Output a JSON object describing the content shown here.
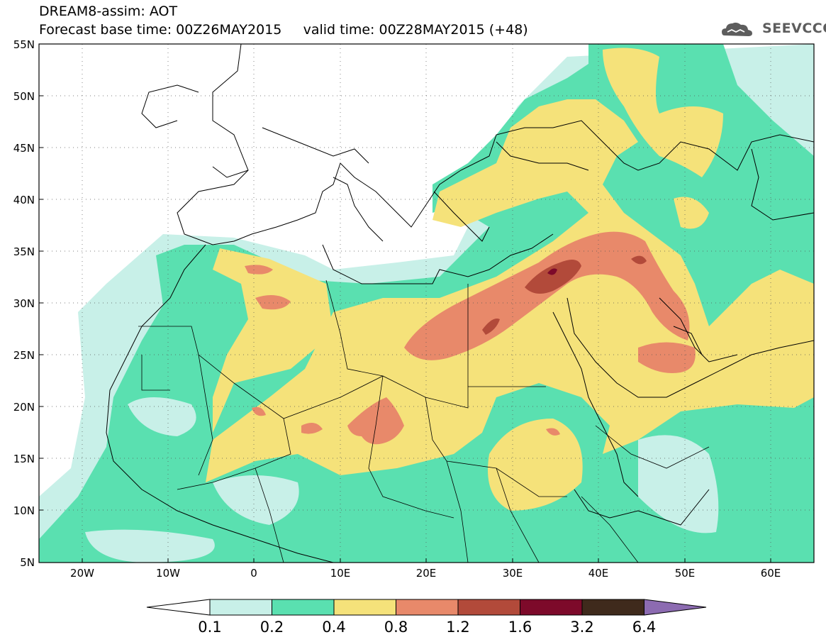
{
  "header": {
    "title_line1": "DREAM8-assim: AOT",
    "title_line2": "Forecast base time: 00Z26MAY2015     valid time: 00Z28MAY2015 (+48)",
    "logo_text": "SEEVCCC",
    "logo_icon": "cloud-logo-icon"
  },
  "map": {
    "lon_range": [
      -25,
      65
    ],
    "lat_range": [
      5,
      55
    ],
    "lat_labels": [
      "55N",
      "50N",
      "45N",
      "40N",
      "35N",
      "30N",
      "25N",
      "20N",
      "15N",
      "10N",
      "5N"
    ],
    "lon_labels": [
      "20W",
      "10W",
      "0",
      "10E",
      "20E",
      "30E",
      "40E",
      "50E",
      "60E"
    ],
    "gridlines": "dotted",
    "field": "aerosol optical thickness"
  },
  "colorbar": {
    "levels": [
      "0.1",
      "0.2",
      "0.4",
      "0.8",
      "1.2",
      "1.6",
      "3.2",
      "6.4"
    ],
    "colors": [
      "#ffffff",
      "#c8f0e8",
      "#5ae0b0",
      "#f5e27a",
      "#e8896a",
      "#b24a3a",
      "#7d0a2a",
      "#3f2a1c",
      "#8c6bb1"
    ]
  },
  "colors": {
    "aot_0_1": "#c8f0e8",
    "aot_0_2": "#5ae0b0",
    "aot_0_4": "#f5e27a",
    "aot_0_8": "#e8896a",
    "aot_1_2": "#b24a3a",
    "aot_1_6": "#7d0a2a"
  }
}
